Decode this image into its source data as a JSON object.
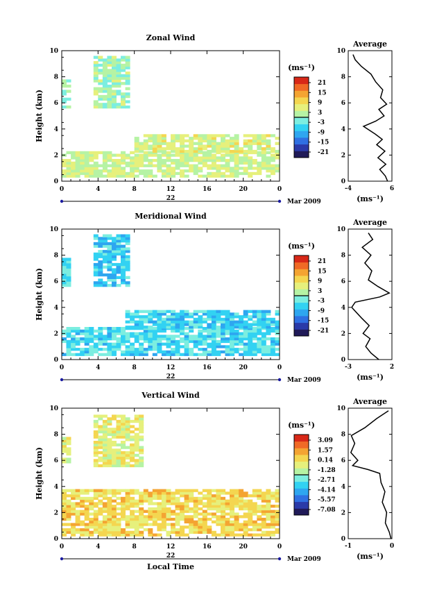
{
  "chart_data": [
    {
      "type": "heatmap",
      "title": "Zonal Wind",
      "ylabel": "Height (km)",
      "xlabel": "",
      "xticks": [
        "0",
        "4",
        "8",
        "12",
        "16",
        "20",
        "0"
      ],
      "yticks": [
        "0",
        "2",
        "4",
        "6",
        "8",
        "10"
      ],
      "xlim": [
        0,
        24
      ],
      "ylim": [
        0,
        10
      ],
      "date_marker": "22",
      "date_label": "Mar 2009",
      "colorbar": {
        "unit_label": "(ms⁻¹)",
        "ticks": [
          "21",
          "15",
          "9",
          "3",
          "-3",
          "-9",
          "-15",
          "-21"
        ],
        "min": -24,
        "max": 24
      },
      "data_regions": [
        {
          "x": [
            0,
            24
          ],
          "y": [
            0.3,
            2.2
          ],
          "value": 4
        },
        {
          "x": [
            8,
            24
          ],
          "y": [
            2.2,
            3.6
          ],
          "value": 5
        },
        {
          "x": [
            0,
            0.8
          ],
          "y": [
            5.6,
            7.8
          ],
          "value": 1
        },
        {
          "x": [
            3.5,
            7.5
          ],
          "y": [
            5.6,
            9.4
          ],
          "value": 1
        }
      ],
      "average": {
        "title": "Average",
        "xlabel": "(ms⁻¹)",
        "xticks": [
          "-4",
          "6"
        ],
        "xlim": [
          -4,
          6
        ],
        "yticks": [
          "0",
          "2",
          "4",
          "6",
          "8",
          "10"
        ],
        "profile": [
          {
            "x": 5.0,
            "y": 0.0
          },
          {
            "x": 4.5,
            "y": 0.4
          },
          {
            "x": 3.2,
            "y": 0.9
          },
          {
            "x": 4.6,
            "y": 1.3
          },
          {
            "x": 2.8,
            "y": 1.8
          },
          {
            "x": 4.4,
            "y": 2.3
          },
          {
            "x": 2.5,
            "y": 2.8
          },
          {
            "x": 3.8,
            "y": 3.2
          },
          {
            "x": 2.2,
            "y": 3.6
          },
          {
            "x": -0.5,
            "y": 4.2
          },
          {
            "x": 2.3,
            "y": 4.6
          },
          {
            "x": 4.2,
            "y": 5.0
          },
          {
            "x": 3.0,
            "y": 5.5
          },
          {
            "x": 4.8,
            "y": 5.9
          },
          {
            "x": 3.4,
            "y": 6.4
          },
          {
            "x": 3.9,
            "y": 7.0
          },
          {
            "x": 2.3,
            "y": 7.6
          },
          {
            "x": 1.2,
            "y": 8.2
          },
          {
            "x": -1.0,
            "y": 8.8
          },
          {
            "x": -2.4,
            "y": 9.3
          },
          {
            "x": -2.9,
            "y": 9.7
          }
        ]
      }
    },
    {
      "type": "heatmap",
      "title": "Meridional Wind",
      "ylabel": "Height (km)",
      "xlabel": "",
      "xticks": [
        "0",
        "4",
        "8",
        "12",
        "16",
        "20",
        "0"
      ],
      "yticks": [
        "0",
        "2",
        "4",
        "6",
        "8",
        "10"
      ],
      "xlim": [
        0,
        24
      ],
      "ylim": [
        0,
        10
      ],
      "date_marker": "22",
      "date_label": "Mar 2009",
      "colorbar": {
        "unit_label": "(ms⁻¹)",
        "ticks": [
          "21",
          "15",
          "9",
          "3",
          "-3",
          "-9",
          "-15",
          "-21"
        ],
        "min": -24,
        "max": 24
      },
      "data_regions": [
        {
          "x": [
            0,
            24
          ],
          "y": [
            0.3,
            2.4
          ],
          "value": -5
        },
        {
          "x": [
            7,
            24
          ],
          "y": [
            2.4,
            3.7
          ],
          "value": -6
        },
        {
          "x": [
            0,
            0.8
          ],
          "y": [
            5.6,
            7.8
          ],
          "value": -4
        },
        {
          "x": [
            3.5,
            7.5
          ],
          "y": [
            5.6,
            9.4
          ],
          "value": -6
        }
      ],
      "average": {
        "title": "Average",
        "xlabel": "(ms⁻¹)",
        "xticks": [
          "-3",
          "2"
        ],
        "xlim": [
          -3,
          2
        ],
        "yticks": [
          "0",
          "2",
          "4",
          "6",
          "8",
          "10"
        ],
        "profile": [
          {
            "x": 0.5,
            "y": 0.0
          },
          {
            "x": -0.4,
            "y": 0.5
          },
          {
            "x": -1.0,
            "y": 1.0
          },
          {
            "x": -0.5,
            "y": 1.6
          },
          {
            "x": -1.3,
            "y": 2.0
          },
          {
            "x": -0.6,
            "y": 2.6
          },
          {
            "x": -1.5,
            "y": 3.2
          },
          {
            "x": -2.6,
            "y": 4.0
          },
          {
            "x": -2.2,
            "y": 4.4
          },
          {
            "x": 0.6,
            "y": 4.8
          },
          {
            "x": 1.7,
            "y": 5.1
          },
          {
            "x": 0.4,
            "y": 5.6
          },
          {
            "x": -0.7,
            "y": 6.1
          },
          {
            "x": -0.3,
            "y": 6.8
          },
          {
            "x": -1.1,
            "y": 7.4
          },
          {
            "x": -0.4,
            "y": 8.0
          },
          {
            "x": -1.4,
            "y": 8.6
          },
          {
            "x": -0.2,
            "y": 9.2
          },
          {
            "x": -0.7,
            "y": 9.7
          }
        ]
      }
    },
    {
      "type": "heatmap",
      "title": "Vertical Wind",
      "ylabel": "Height (km)",
      "xlabel": "Local Time",
      "xticks": [
        "0",
        "4",
        "8",
        "12",
        "16",
        "20",
        "0"
      ],
      "yticks": [
        "0",
        "2",
        "4",
        "6",
        "8",
        "10"
      ],
      "xlim": [
        0,
        24
      ],
      "ylim": [
        0,
        10
      ],
      "date_marker": "22",
      "date_label": "Mar 2009",
      "colorbar": {
        "unit_label": "(ms⁻¹)",
        "ticks": [
          "3.09",
          "1.57",
          "0.14",
          "-1.28",
          "-2.71",
          "-4.14",
          "-5.57",
          "-7.08"
        ],
        "min": -7.8,
        "max": 3.8
      },
      "data_regions": [
        {
          "x": [
            0,
            24
          ],
          "y": [
            0.2,
            3.7
          ],
          "value": 0.3
        },
        {
          "x": [
            0,
            0.8
          ],
          "y": [
            5.8,
            7.8
          ],
          "value": -0.6
        },
        {
          "x": [
            3.5,
            9.0
          ],
          "y": [
            5.5,
            9.3
          ],
          "value": -0.5
        }
      ],
      "average": {
        "title": "Average",
        "xlabel": "(ms⁻¹)",
        "xticks": [
          "-1",
          "0"
        ],
        "xlim": [
          -1,
          0
        ],
        "yticks": [
          "0",
          "2",
          "4",
          "6",
          "8",
          "10"
        ],
        "profile": [
          {
            "x": -0.02,
            "y": 0.0
          },
          {
            "x": -0.06,
            "y": 0.5
          },
          {
            "x": -0.15,
            "y": 1.2
          },
          {
            "x": -0.12,
            "y": 2.0
          },
          {
            "x": -0.22,
            "y": 2.8
          },
          {
            "x": -0.16,
            "y": 3.6
          },
          {
            "x": -0.25,
            "y": 4.3
          },
          {
            "x": -0.28,
            "y": 5.0
          },
          {
            "x": -0.55,
            "y": 5.3
          },
          {
            "x": -0.9,
            "y": 5.6
          },
          {
            "x": -0.78,
            "y": 6.0
          },
          {
            "x": -0.94,
            "y": 6.6
          },
          {
            "x": -0.85,
            "y": 7.3
          },
          {
            "x": -0.93,
            "y": 7.9
          },
          {
            "x": -0.62,
            "y": 8.5
          },
          {
            "x": -0.35,
            "y": 9.2
          },
          {
            "x": -0.08,
            "y": 9.8
          }
        ]
      }
    }
  ]
}
